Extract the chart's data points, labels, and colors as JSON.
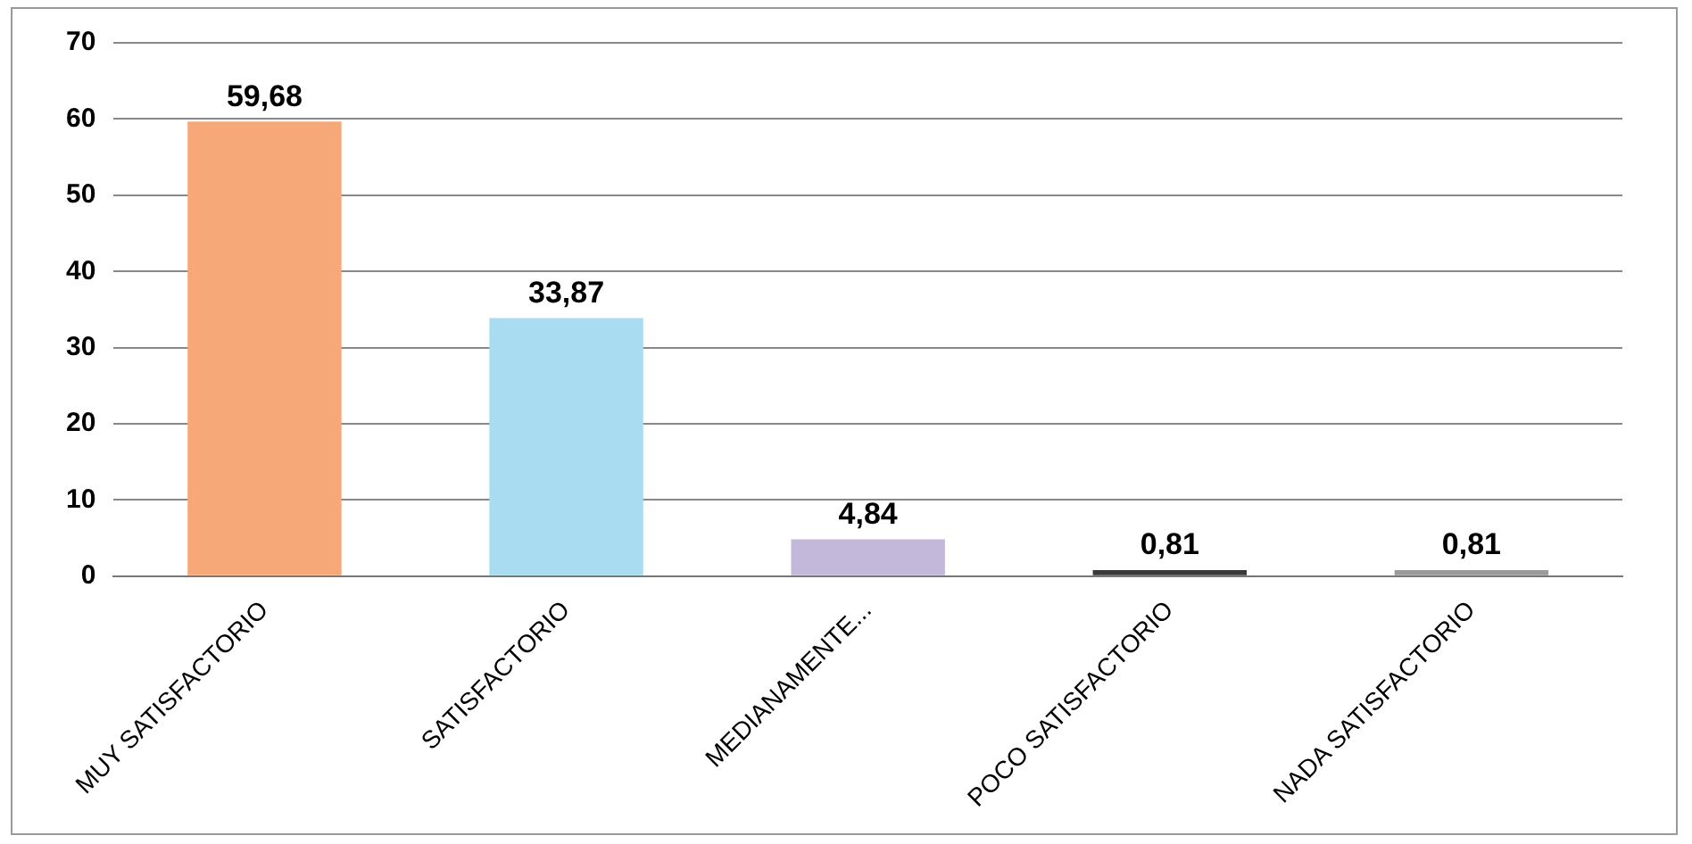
{
  "chart_data": {
    "type": "bar",
    "categories": [
      "MUY SATISFACTORIO",
      "SATISFACTORIO",
      "MEDIANAMENTE...",
      "POCO SATISFACTORIO",
      "NADA SATISFACTORIO"
    ],
    "values": [
      59.68,
      33.87,
      4.84,
      0.81,
      0.81
    ],
    "colors": [
      "#f7a878",
      "#a9dcf0",
      "#c4b8da",
      "#3a3a3a",
      "#9a9a9a"
    ],
    "value_labels": [
      "59,68",
      "33,87",
      "4,84",
      "0,81",
      "0,81"
    ],
    "ylim": [
      0,
      70
    ],
    "yticks": [
      0,
      10,
      20,
      30,
      40,
      50,
      60,
      70
    ],
    "grid": "y",
    "legend": false
  }
}
